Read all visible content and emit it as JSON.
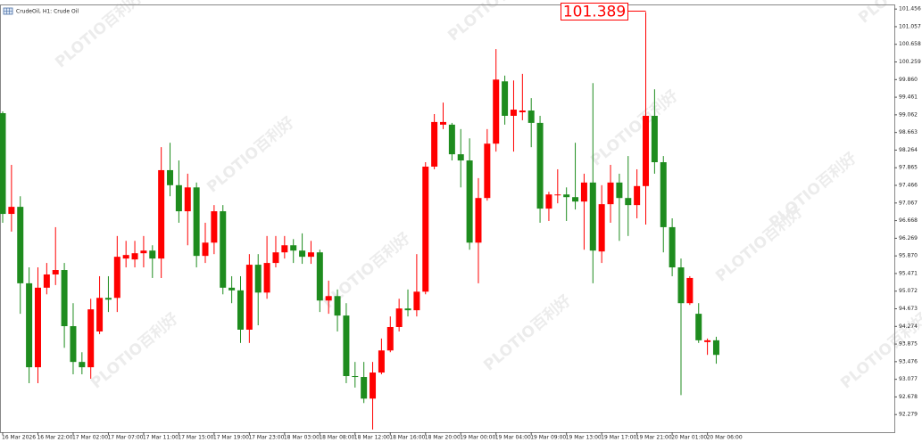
{
  "chart_data": {
    "type": "candlestick",
    "title": "CrudeOil, H1:  Crude Oil",
    "watermark": [
      "PLOTIO",
      "百利好"
    ],
    "up_color": "#ff0000",
    "down_color": "#1e8c1e",
    "categories": [
      "16 Mar 2026",
      null,
      null,
      null,
      "16 Mar 22:00",
      null,
      null,
      null,
      "17 Mar 02:00",
      null,
      null,
      null,
      "17 Mar 07:00",
      null,
      null,
      null,
      "17 Mar 11:00",
      null,
      null,
      null,
      "17 Mar 15:00",
      null,
      null,
      null,
      "17 Mar 19:00",
      null,
      null,
      null,
      "17 Mar 23:00",
      null,
      null,
      null,
      "18 Mar 03:00",
      null,
      null,
      null,
      "18 Mar 08:00",
      null,
      null,
      null,
      "18 Mar 12:00",
      null,
      null,
      null,
      "18 Mar 16:00",
      null,
      null,
      null,
      "18 Mar 20:00",
      null,
      null,
      null,
      "19 Mar 00:00",
      null,
      null,
      null,
      "19 Mar 04:00",
      null,
      null,
      null,
      "19 Mar 09:00",
      null,
      null,
      null,
      "19 Mar 13:00",
      null,
      null,
      null,
      "19 Mar 17:00",
      null,
      null,
      null,
      "19 Mar 21:00",
      null,
      null,
      null,
      "20 Mar 01:00",
      null,
      null,
      null,
      "20 Mar 06:00",
      null
    ],
    "open": [
      99.1,
      96.82,
      96.98,
      95.25,
      93.35,
      95.15,
      95.45,
      95.55,
      94.28,
      93.47,
      93.35,
      94.16,
      94.92,
      94.92,
      95.81,
      95.79,
      95.93,
      95.99,
      95.81,
      97.81,
      97.47,
      96.88,
      97.42,
      95.87,
      96.17,
      96.88,
      95.15,
      95.09,
      94.2,
      95.67,
      95.04,
      95.71,
      95.95,
      96.11,
      95.99,
      95.85,
      95.95,
      94.86,
      94.96,
      94.52,
      93.15,
      93.13,
      92.64,
      93.23,
      93.73,
      94.26,
      94.68,
      94.64,
      95.06,
      97.89,
      98.84,
      98.84,
      98.17,
      98.03,
      96.17,
      97.18,
      98.41,
      99.82,
      99.04,
      99.12,
      99.16,
      98.88,
      96.94,
      97.24,
      97.26,
      97.2,
      97.1,
      97.53,
      95.97,
      97.04,
      97.53,
      97.18,
      97.02,
      97.45,
      99.04,
      97.99,
      96.52,
      95.61,
      94.8,
      94.56,
      93.92,
      93.96
    ],
    "high": [
      99.14,
      97.93,
      97.22,
      95.61,
      95.61,
      95.71,
      96.52,
      95.71,
      94.8,
      93.69,
      94.9,
      95.41,
      95.41,
      96.32,
      96.21,
      96.21,
      96.32,
      96.11,
      98.33,
      98.43,
      98.03,
      97.73,
      97.53,
      96.62,
      97.02,
      97.02,
      95.41,
      95.41,
      95.91,
      95.91,
      96.32,
      96.32,
      96.32,
      96.25,
      96.38,
      96.21,
      96.01,
      95.31,
      95.11,
      94.8,
      93.47,
      93.47,
      93.47,
      94.0,
      94.5,
      94.9,
      95.11,
      95.91,
      97.99,
      99.08,
      99.34,
      98.88,
      98.74,
      98.53,
      97.63,
      98.74,
      100.55,
      99.95,
      99.84,
      99.99,
      99.44,
      99.04,
      97.32,
      97.83,
      97.42,
      98.43,
      97.73,
      99.78,
      97.47,
      97.93,
      97.73,
      98.13,
      97.83,
      101.389,
      99.64,
      98.13,
      96.72,
      95.81,
      95.41,
      94.8,
      94.0,
      94.04
    ],
    "low": [
      96.62,
      96.42,
      94.56,
      92.99,
      92.99,
      95.0,
      95.21,
      93.79,
      93.19,
      93.19,
      93.09,
      94.1,
      94.6,
      94.6,
      95.61,
      95.61,
      95.61,
      95.37,
      95.37,
      97.22,
      96.62,
      96.11,
      95.61,
      95.71,
      95.91,
      95.0,
      94.8,
      93.9,
      93.9,
      94.3,
      94.9,
      95.61,
      95.81,
      95.71,
      95.69,
      95.69,
      94.6,
      94.56,
      94.16,
      92.99,
      92.89,
      92.54,
      91.94,
      93.19,
      93.69,
      94.16,
      94.5,
      94.5,
      95.0,
      97.83,
      98.74,
      98.03,
      97.42,
      96.01,
      95.25,
      97.12,
      98.23,
      98.84,
      98.23,
      98.94,
      98.33,
      96.62,
      96.66,
      97.06,
      96.66,
      96.92,
      96.01,
      95.25,
      95.71,
      96.62,
      96.21,
      96.32,
      96.72,
      96.58,
      97.73,
      95.95,
      95.41,
      92.72,
      94.76,
      93.9,
      93.63,
      93.43
    ],
    "close": [
      96.82,
      96.98,
      95.25,
      93.35,
      95.15,
      95.45,
      95.55,
      94.28,
      93.47,
      93.35,
      94.66,
      94.92,
      94.88,
      95.85,
      95.89,
      95.93,
      95.99,
      95.81,
      97.81,
      97.47,
      96.88,
      97.42,
      95.87,
      96.17,
      96.88,
      95.15,
      95.09,
      94.2,
      95.67,
      95.04,
      95.71,
      95.95,
      96.11,
      95.99,
      95.85,
      95.95,
      94.86,
      94.96,
      94.52,
      93.15,
      93.13,
      92.64,
      93.23,
      93.73,
      94.26,
      94.68,
      94.64,
      95.06,
      97.89,
      98.9,
      98.9,
      98.17,
      98.03,
      96.17,
      97.18,
      98.41,
      99.86,
      99.04,
      99.18,
      99.16,
      98.88,
      96.94,
      97.26,
      97.26,
      97.2,
      97.1,
      97.53,
      95.99,
      97.04,
      97.53,
      97.18,
      97.02,
      97.45,
      99.04,
      97.99,
      96.52,
      95.61,
      94.8,
      95.37,
      93.96,
      93.96,
      93.63
    ],
    "ylim": [
      91.88,
      101.54
    ],
    "yticks": [
      101.456,
      101.057,
      100.658,
      100.259,
      {
        "value": 99.86,
        "label": "99.860"
      },
      99.461,
      99.062,
      98.663,
      98.264,
      97.865,
      97.466,
      97.067,
      96.668,
      96.269,
      {
        "value": 95.87,
        "label": "95.870"
      },
      95.471,
      95.072,
      94.673,
      94.274,
      93.875,
      93.476,
      93.077,
      92.678,
      92.279
    ]
  }
}
